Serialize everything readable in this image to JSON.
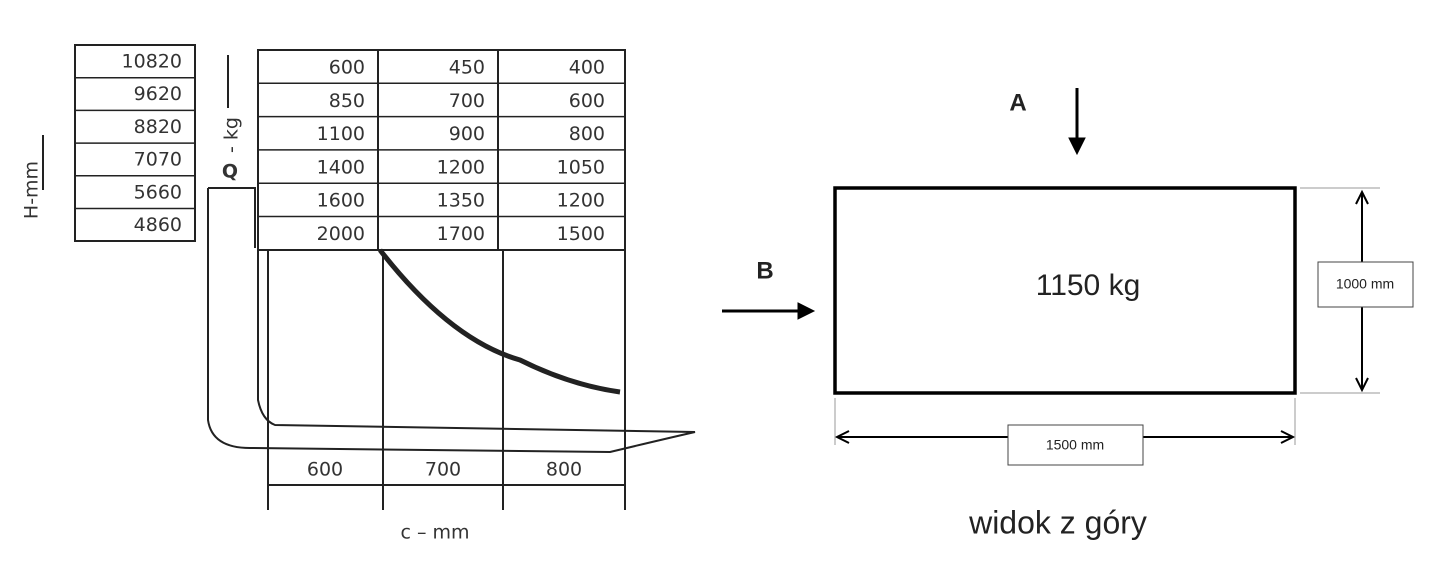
{
  "heights": {
    "axis_label": "H-mm",
    "values": [
      "10820",
      "9620",
      "8820",
      "7070",
      "5660",
      "4860"
    ]
  },
  "load_table": {
    "symbol": "Q",
    "unit": "- kg",
    "rows": [
      [
        "600",
        "450",
        "400"
      ],
      [
        "850",
        "700",
        "600"
      ],
      [
        "1100",
        "900",
        "800"
      ],
      [
        "1400",
        "1200",
        "1050"
      ],
      [
        "1600",
        "1350",
        "1200"
      ],
      [
        "2000",
        "1700",
        "1500"
      ]
    ]
  },
  "distances": {
    "axis_label": "c – mm",
    "values": [
      "600",
      "700",
      "800"
    ]
  },
  "top_view": {
    "arrow_a": "A",
    "arrow_b": "B",
    "load": "1150 kg",
    "height": "1000 mm",
    "width": "1500 mm",
    "caption": "widok z góry"
  }
}
